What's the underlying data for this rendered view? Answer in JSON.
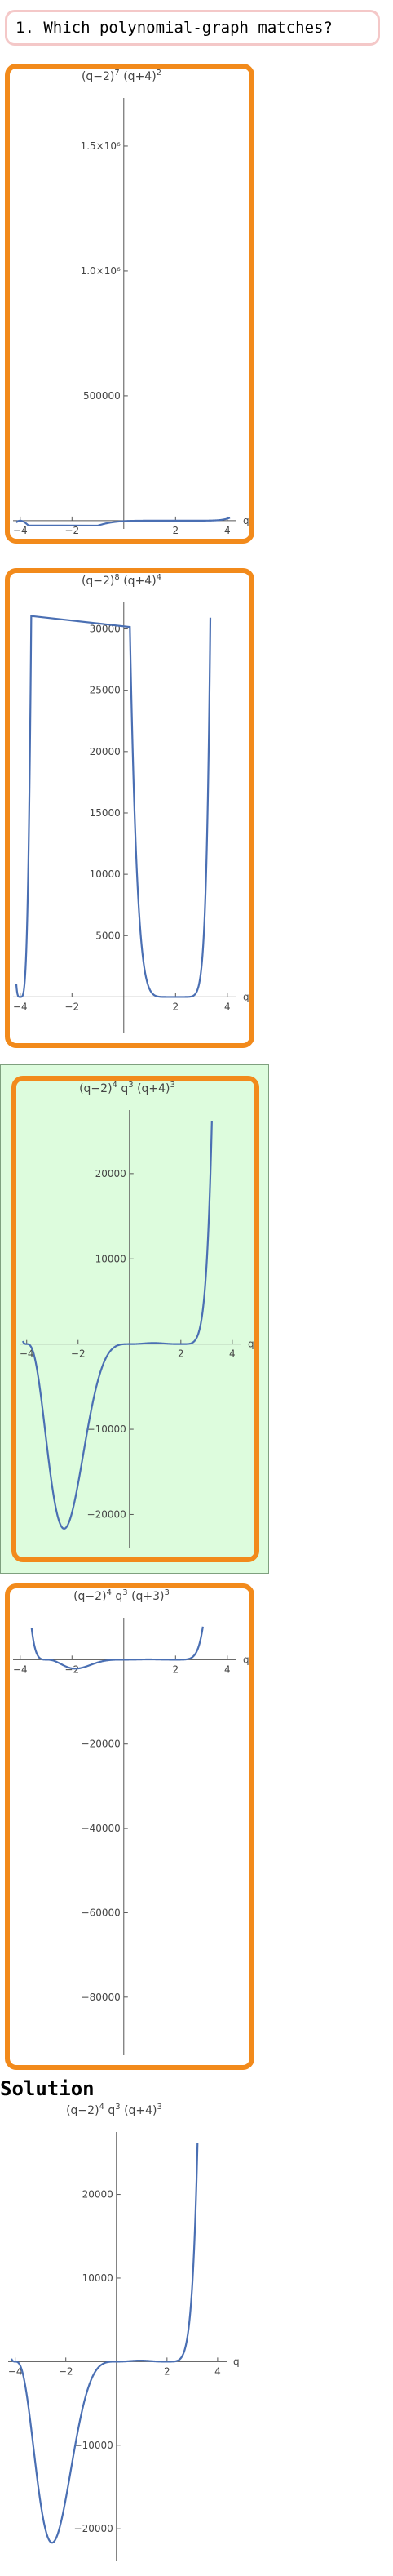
{
  "question": "1. Which polynomial-graph matches?",
  "solution_label": "Solution",
  "colors": {
    "curve": "#4a6fb3",
    "border": "#f28a1b",
    "correct_bg": "#ddfcdd"
  },
  "chart_data": [
    {
      "type": "line",
      "title": "(q-2)^7 (q+4)^2",
      "title_parts": {
        "base": "(q−2)",
        "exp1": "7",
        "mid": " (q+4)",
        "exp2": "2"
      },
      "xlabel": "q",
      "fn": "(q-2)^7*(q+4)^2",
      "xlim": [
        -4.15,
        4.1
      ],
      "ylim": [
        -20000,
        1660000
      ],
      "xticks": [
        -4,
        -2,
        2,
        4
      ],
      "yticks": [
        {
          "v": 500000,
          "label": "500000"
        },
        {
          "v": 1000000,
          "label": "1.0×10⁶"
        },
        {
          "v": 1500000,
          "label": "1.5×10⁶"
        }
      ]
    },
    {
      "type": "line",
      "title": "(q-2)^8 (q+4)^4",
      "title_parts": {
        "base": "(q−2)",
        "exp1": "8",
        "mid": " (q+4)",
        "exp2": "4"
      },
      "xlabel": "q",
      "fn": "(q-2)^8*(q+4)^4",
      "xlim": [
        -4.15,
        4.1
      ],
      "ylim": [
        -2700,
        31500
      ],
      "xticks": [
        -4,
        -2,
        2,
        4
      ],
      "yticks": [
        {
          "v": 5000,
          "label": "5000"
        },
        {
          "v": 10000,
          "label": "10000"
        },
        {
          "v": 15000,
          "label": "15000"
        },
        {
          "v": 20000,
          "label": "20000"
        },
        {
          "v": 25000,
          "label": "25000"
        },
        {
          "v": 30000,
          "label": "30000"
        }
      ]
    },
    {
      "type": "line",
      "title": "(q-2)^4 q^3 (q+4)^3",
      "title_parts": {
        "base": "(q−2)",
        "exp1": "4",
        "mid": " q",
        "exp2": "3",
        "mid2": " (q+4)",
        "exp3": "3"
      },
      "xlabel": "q",
      "fn": "(q-2)^4*q^3*(q+4)^3",
      "xlim": [
        -4.15,
        4.1
      ],
      "ylim": [
        -23500,
        26500
      ],
      "xticks": [
        -4,
        -2,
        2,
        4
      ],
      "yticks": [
        {
          "v": -20000,
          "label": "−20000"
        },
        {
          "v": -10000,
          "label": "−10000"
        },
        {
          "v": 10000,
          "label": "10000"
        },
        {
          "v": 20000,
          "label": "20000"
        }
      ]
    },
    {
      "type": "line",
      "title": "(q-2)^4 q^3 (q+3)^3",
      "title_parts": {
        "base": "(q−2)",
        "exp1": "4",
        "mid": " q",
        "exp2": "3",
        "mid2": " (q+3)",
        "exp3": "3"
      },
      "xlabel": "q",
      "fn": "(q-2)^4*q^3*(q+3)^3",
      "xlim": [
        -4.15,
        4.1
      ],
      "ylim": [
        -93000,
        8000
      ],
      "xticks": [
        -4,
        -2,
        2,
        4
      ],
      "yticks": [
        {
          "v": -80000,
          "label": "−80000"
        },
        {
          "v": -60000,
          "label": "−60000"
        },
        {
          "v": -40000,
          "label": "−40000"
        },
        {
          "v": -20000,
          "label": "−20000"
        }
      ]
    },
    {
      "type": "line",
      "title": "(q-2)^4 q^3 (q+4)^3",
      "title_parts": {
        "base": "(q−2)",
        "exp1": "4",
        "mid": " q",
        "exp2": "3",
        "mid2": " (q+4)",
        "exp3": "3"
      },
      "xlabel": "q",
      "fn": "(q-2)^4*q^3*(q+4)^3",
      "xlim": [
        -4.15,
        4.1
      ],
      "ylim": [
        -23500,
        26500
      ],
      "xticks": [
        -4,
        -2,
        2,
        4
      ],
      "yticks": [
        {
          "v": -20000,
          "label": "−20000"
        },
        {
          "v": -10000,
          "label": "−10000"
        },
        {
          "v": 10000,
          "label": "10000"
        },
        {
          "v": 20000,
          "label": "20000"
        }
      ]
    }
  ]
}
